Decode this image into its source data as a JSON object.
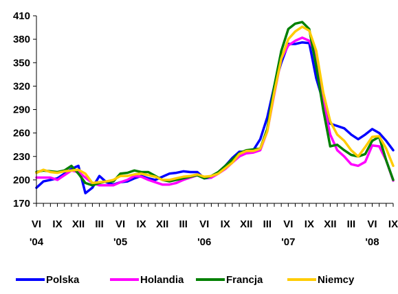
{
  "chart_data": {
    "type": "line",
    "title": "",
    "xlabel": "",
    "ylabel": "",
    "ylim": [
      170,
      410
    ],
    "yticks": [
      170,
      200,
      230,
      260,
      290,
      320,
      350,
      380,
      410
    ],
    "grid": false,
    "legend": "bottom",
    "x": [
      "VI '04",
      "VII",
      "VIII",
      "IX",
      "X",
      "XI",
      "XII",
      "I",
      "II",
      "III",
      "IV",
      "V",
      "VI '05",
      "VII",
      "VIII",
      "IX",
      "X",
      "XI",
      "XII",
      "I",
      "II",
      "III",
      "IV",
      "V",
      "VI '06",
      "VII",
      "VIII",
      "IX",
      "X",
      "XI",
      "XII",
      "I",
      "II",
      "III",
      "IV",
      "V",
      "VI '07",
      "VII",
      "VIII",
      "IX",
      "X",
      "XI",
      "XII",
      "I",
      "II",
      "III",
      "IV",
      "V",
      "VI '08",
      "VII",
      "VIII",
      "IX"
    ],
    "x_tick_labels": [
      "VI",
      "IX",
      "XII",
      "III",
      "VI",
      "IX",
      "XII",
      "III",
      "VI",
      "IX",
      "XII",
      "III",
      "VI",
      "IX",
      "XII",
      "III",
      "VI",
      "IX"
    ],
    "year_labels": [
      "'04",
      "'05",
      "'06",
      "'07",
      "'08"
    ],
    "series": [
      {
        "name": "Polska",
        "color": "#0000ff",
        "values": [
          190,
          198,
          200,
          202,
          208,
          214,
          218,
          183,
          190,
          205,
          197,
          194,
          197,
          198,
          202,
          205,
          202,
          200,
          204,
          208,
          209,
          211,
          210,
          210,
          202,
          203,
          210,
          218,
          228,
          236,
          236,
          238,
          252,
          280,
          320,
          350,
          374,
          374,
          376,
          375,
          330,
          300,
          272,
          269,
          266,
          258,
          252,
          258,
          265,
          260,
          250,
          238
        ]
      },
      {
        "name": "Holandia",
        "color": "#ff00ff",
        "values": [
          203,
          203,
          203,
          200,
          206,
          212,
          210,
          203,
          196,
          193,
          193,
          193,
          197,
          200,
          205,
          204,
          200,
          197,
          194,
          194,
          196,
          200,
          203,
          206,
          203,
          203,
          208,
          214,
          222,
          230,
          234,
          235,
          238,
          262,
          310,
          355,
          372,
          378,
          382,
          378,
          360,
          300,
          258,
          238,
          230,
          220,
          218,
          223,
          244,
          243,
          225,
          199
        ]
      },
      {
        "name": "Francja",
        "color": "#008000",
        "values": [
          210,
          212,
          211,
          210,
          212,
          218,
          208,
          196,
          193,
          196,
          198,
          198,
          208,
          209,
          212,
          210,
          210,
          205,
          200,
          198,
          200,
          202,
          204,
          206,
          202,
          205,
          210,
          218,
          226,
          234,
          238,
          239,
          240,
          265,
          320,
          365,
          393,
          400,
          402,
          393,
          345,
          290,
          243,
          245,
          238,
          232,
          230,
          233,
          250,
          255,
          225,
          200
        ]
      },
      {
        "name": "Niemcy",
        "color": "#ffcc00",
        "values": [
          209,
          213,
          210,
          209,
          211,
          212,
          213,
          208,
          196,
          197,
          198,
          200,
          205,
          205,
          207,
          208,
          206,
          204,
          200,
          200,
          202,
          204,
          205,
          207,
          204,
          205,
          208,
          215,
          222,
          233,
          237,
          237,
          240,
          262,
          312,
          355,
          380,
          390,
          396,
          391,
          365,
          312,
          275,
          258,
          250,
          238,
          230,
          242,
          255,
          256,
          240,
          218
        ]
      }
    ]
  }
}
